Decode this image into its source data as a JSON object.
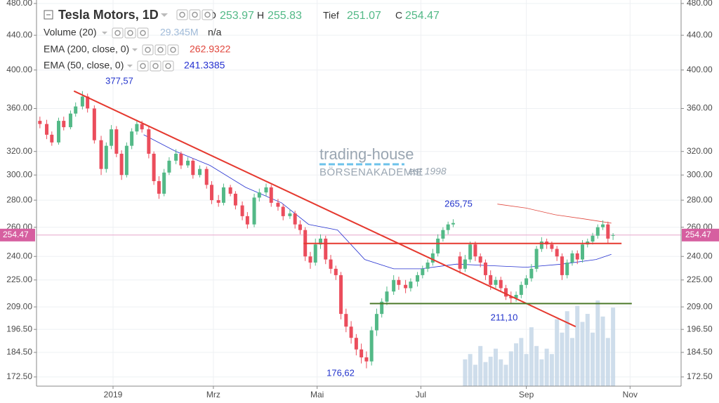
{
  "chart_data": {
    "type": "candlestick",
    "title": "Tesla Motors, 1D",
    "ohlc_labels": {
      "open": "O",
      "high": "H",
      "low": "Tief",
      "close": "C"
    },
    "ohlc_values": {
      "open": 253.97,
      "high": 255.83,
      "low": 251.07,
      "close": 254.47
    },
    "indicators": [
      {
        "name": "Volume (20)",
        "value": "29.345M",
        "extra": "n/a",
        "color": "#9fbad8"
      },
      {
        "name": "EMA (200, close, 0)",
        "value": 262.9322,
        "color": "#e0453b"
      },
      {
        "name": "EMA (50, close, 0)",
        "value": 241.3385,
        "color": "#2430d0"
      }
    ],
    "x": [
      2,
      6,
      9,
      13,
      16,
      20,
      23,
      27,
      30,
      34,
      38,
      41,
      44,
      47,
      50,
      53,
      56,
      59,
      62,
      66,
      69,
      72,
      75,
      78,
      82,
      85,
      89,
      92,
      96,
      100,
      103,
      107,
      110,
      114,
      117,
      121,
      124,
      128,
      131,
      135,
      138,
      142,
      145,
      149,
      152,
      155,
      158,
      161,
      164,
      167,
      170,
      173,
      176,
      179,
      182,
      185,
      188,
      191,
      194,
      197,
      200,
      203,
      206,
      210,
      213,
      217,
      220,
      224,
      227,
      230,
      233,
      236,
      239,
      242,
      245,
      249,
      252,
      255,
      258,
      261,
      264,
      267,
      270,
      273,
      276,
      279,
      282,
      285,
      288,
      291,
      294,
      297,
      300,
      303,
      306,
      309,
      312,
      315,
      318,
      321,
      324,
      327,
      330,
      333,
      336,
      339
    ],
    "open": [
      348,
      345,
      335,
      328,
      348,
      342,
      355,
      362,
      372,
      360,
      330,
      305,
      325,
      340,
      318,
      300,
      325,
      338,
      345,
      340,
      318,
      295,
      285,
      302,
      312,
      318,
      308,
      312,
      300,
      305,
      292,
      280,
      278,
      290,
      285,
      276,
      268,
      262,
      282,
      286,
      290,
      278,
      275,
      268,
      270,
      262,
      258,
      240,
      236,
      248,
      252,
      238,
      232,
      228,
      205,
      198,
      192,
      186,
      182,
      180,
      196,
      205,
      212,
      218,
      225,
      222,
      220,
      224,
      228,
      232,
      236,
      242,
      252,
      258,
      262,
      240,
      232,
      238,
      248,
      240,
      236,
      228,
      222,
      225,
      220,
      215,
      214,
      216,
      222,
      226,
      232,
      245,
      250,
      248,
      245,
      240,
      228,
      236,
      242,
      238,
      248,
      250,
      254,
      260,
      262,
      253.97
    ],
    "high": [
      352,
      349,
      338,
      351,
      352,
      358,
      366,
      377.57,
      375,
      363,
      334,
      328,
      344,
      343,
      321,
      328,
      341,
      349,
      348,
      343,
      320,
      299,
      305,
      315,
      322,
      320,
      315,
      314,
      308,
      307,
      295,
      284,
      293,
      292,
      287,
      279,
      271,
      285,
      289,
      293,
      292,
      281,
      277,
      273,
      272,
      265,
      260,
      243,
      252,
      255,
      254,
      241,
      234,
      230,
      208,
      201,
      194,
      189,
      185,
      198,
      208,
      214,
      221,
      228,
      227,
      225,
      226,
      230,
      234,
      238,
      245,
      255,
      260,
      264,
      265.75,
      243,
      241,
      250,
      250,
      242,
      238,
      231,
      227,
      227,
      222,
      218,
      218,
      224,
      228,
      235,
      247,
      253,
      252,
      250,
      247,
      242,
      238,
      244,
      244,
      251,
      252,
      256,
      262,
      265,
      264,
      255.83
    ],
    "low": [
      341,
      331,
      325,
      326,
      339,
      340,
      352,
      359,
      356,
      327,
      300,
      302,
      322,
      315,
      296,
      298,
      322,
      335,
      337,
      314,
      292,
      281,
      283,
      300,
      309,
      305,
      306,
      297,
      298,
      289,
      277,
      275,
      276,
      283,
      273,
      265,
      259,
      260,
      279,
      283,
      275,
      272,
      265,
      266,
      259,
      255,
      237,
      232,
      234,
      245,
      235,
      229,
      225,
      202,
      195,
      189,
      183,
      179,
      176.62,
      178,
      193,
      203,
      210,
      216,
      219,
      217,
      218,
      221,
      226,
      230,
      234,
      240,
      250,
      255,
      260,
      229,
      230,
      236,
      237,
      233,
      225,
      219,
      220,
      218,
      213,
      211.1,
      212,
      214,
      220,
      224,
      230,
      243,
      245,
      243,
      237,
      225,
      226,
      234,
      235,
      236,
      246,
      248,
      252,
      258,
      249,
      251.07
    ],
    "close": [
      345,
      335,
      328,
      348,
      342,
      355,
      362,
      372,
      360,
      330,
      305,
      325,
      340,
      318,
      300,
      325,
      338,
      345,
      340,
      318,
      295,
      285,
      302,
      312,
      318,
      308,
      312,
      300,
      305,
      292,
      280,
      278,
      290,
      285,
      276,
      268,
      262,
      282,
      286,
      290,
      278,
      275,
      268,
      270,
      262,
      258,
      240,
      236,
      248,
      252,
      238,
      232,
      228,
      205,
      198,
      192,
      186,
      182,
      180,
      196,
      205,
      212,
      218,
      225,
      222,
      220,
      224,
      228,
      232,
      236,
      242,
      252,
      258,
      262,
      263,
      232,
      238,
      248,
      240,
      236,
      228,
      222,
      225,
      220,
      215,
      214,
      216,
      222,
      226,
      232,
      245,
      250,
      248,
      245,
      240,
      228,
      236,
      242,
      238,
      248,
      250,
      254,
      260,
      262,
      252,
      254.47
    ],
    "colors": {
      "up": "#53b987",
      "down": "#eb4d5c"
    },
    "volume": {
      "color": "#c6d7e8",
      "x": [
        252,
        255,
        258,
        261,
        264,
        267,
        270,
        273,
        276,
        279,
        282,
        285,
        288,
        291,
        294,
        297,
        300,
        303,
        306,
        309,
        312,
        315,
        318,
        321,
        324,
        327,
        330,
        333,
        336,
        339
      ],
      "values": [
        10,
        12,
        8,
        15,
        9,
        11,
        14,
        10,
        8,
        13,
        16,
        18,
        12,
        22,
        15,
        10,
        14,
        12,
        25,
        20,
        28,
        18,
        30,
        24,
        27,
        20,
        32,
        26,
        18,
        29.345
      ]
    },
    "ema200": {
      "x": [
        271,
        288,
        305,
        322,
        338
      ],
      "values": [
        277,
        274,
        269,
        266,
        262.9322
      ]
    },
    "ema50": {
      "x": [
        63,
        82,
        102,
        123,
        144,
        160,
        177,
        193,
        210,
        226,
        247,
        267,
        288,
        309,
        329,
        338
      ],
      "values": [
        335,
        320,
        308,
        290,
        278,
        262,
        258,
        238,
        232,
        232,
        235,
        234,
        233,
        235,
        238,
        241.3385
      ]
    },
    "trendlines": [
      {
        "color": "#e5392f",
        "x": [
          22,
          317
        ],
        "y": [
          377.57,
          198
        ]
      },
      {
        "color": "#e5392f",
        "x": [
          157,
          344
        ],
        "y": [
          248.7,
          248.7
        ]
      },
      {
        "color": "#4d7a2b",
        "x": [
          196,
          350
        ],
        "y": [
          210.9,
          210.9
        ]
      }
    ],
    "annotations": [
      "377,57",
      "265,75",
      "176,62",
      "211,10"
    ],
    "watermark": {
      "brand": "trading-house",
      "sub": "BÖRSENAKADEMIE",
      "est": "est 1998"
    },
    "last_price": 254.47,
    "xlim": [
      0,
      379
    ],
    "xticks": [
      {
        "value": 45,
        "label": "2019"
      },
      {
        "value": 104,
        "label": "Mrz"
      },
      {
        "value": 165,
        "label": "Mai"
      },
      {
        "value": 226,
        "label": "Jul"
      },
      {
        "value": 288,
        "label": "Sep"
      },
      {
        "value": 349,
        "label": "Nov"
      }
    ],
    "ylim": [
      168.2,
      484.6
    ],
    "log_scale": true,
    "grid": true,
    "yticks": [
      {
        "value": 172.5,
        "label": "172.50"
      },
      {
        "value": 184.5,
        "label": "184.50"
      },
      {
        "value": 196.5,
        "label": "196.50"
      },
      {
        "value": 209,
        "label": "209.00"
      },
      {
        "value": 225,
        "label": "225.00"
      },
      {
        "value": 240,
        "label": "240.00"
      },
      {
        "value": 260,
        "label": "260.00"
      },
      {
        "value": 280,
        "label": "280.00"
      },
      {
        "value": 300,
        "label": "300.00"
      },
      {
        "value": 320,
        "label": "320.00"
      },
      {
        "value": 360,
        "label": "360.00"
      },
      {
        "value": 400,
        "label": "400.00"
      },
      {
        "value": 440,
        "label": "440.00"
      },
      {
        "value": 480,
        "label": "480.00"
      }
    ]
  }
}
